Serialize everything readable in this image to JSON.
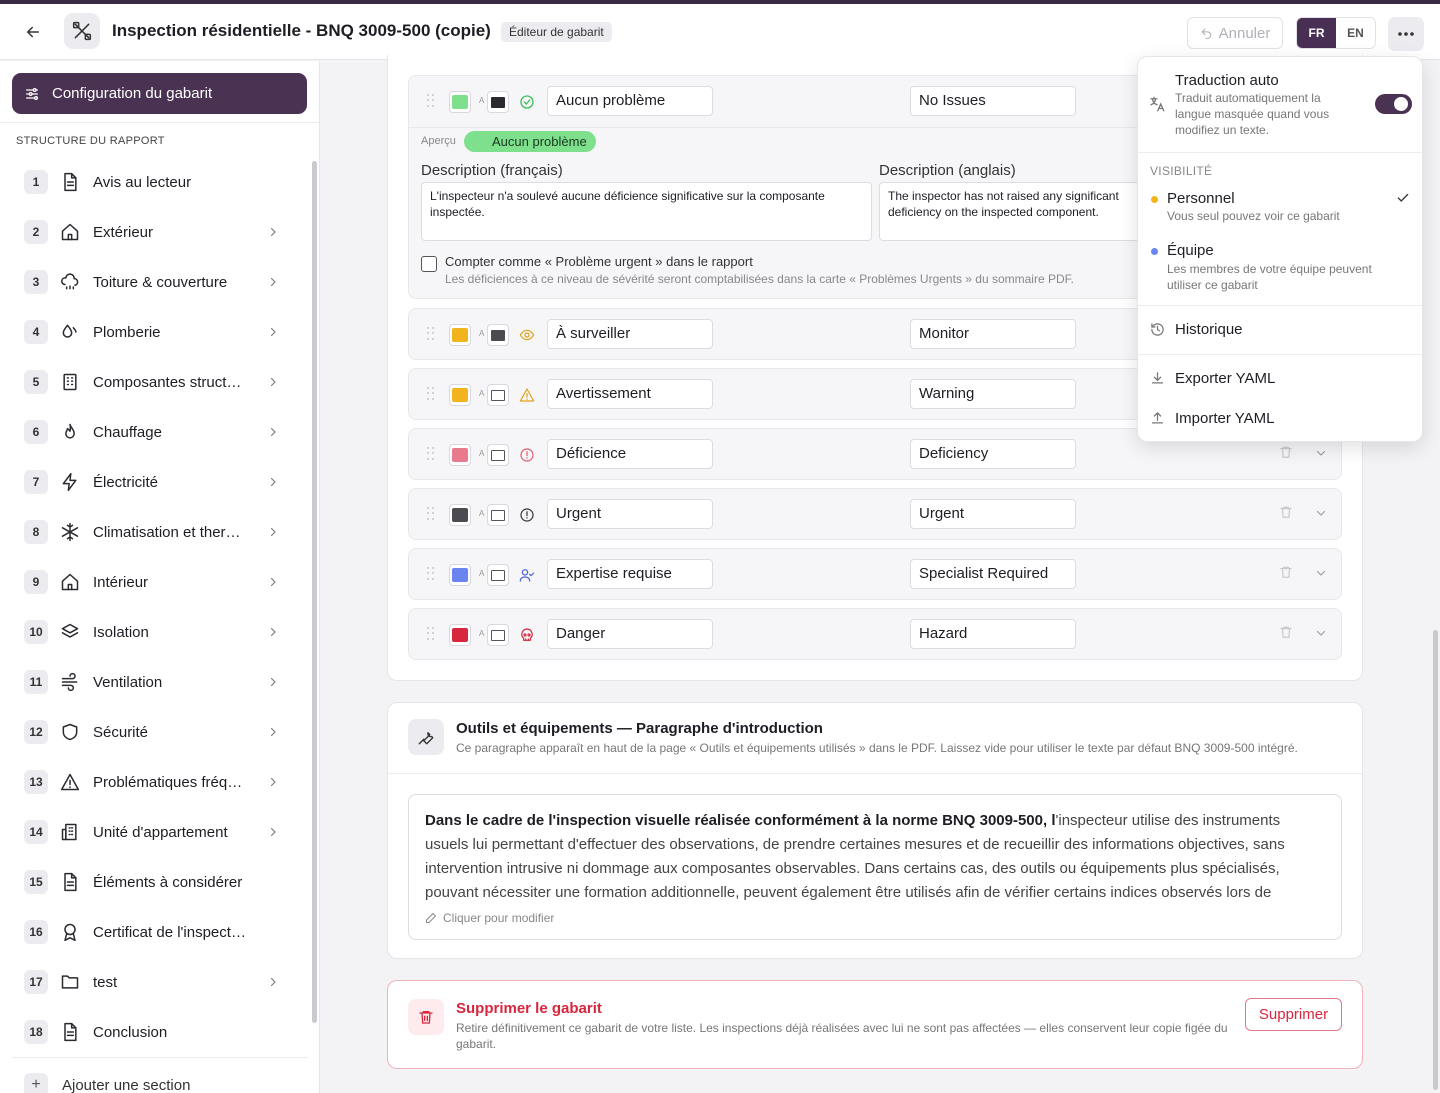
{
  "header": {
    "title": "Inspection résidentielle - BNQ 3009-500 (copie)",
    "badge": "Éditeur de gabarit",
    "undo_label": "Annuler",
    "lang_fr": "FR",
    "lang_en": "EN"
  },
  "sidebar": {
    "config_label": "Configuration du gabarit",
    "structure_title": "STRUCTURE DU RAPPORT",
    "items": [
      {
        "num": "1",
        "label": "Avis au lecteur",
        "icon": "document-icon",
        "chevron": false
      },
      {
        "num": "2",
        "label": "Extérieur",
        "icon": "home-icon",
        "chevron": true
      },
      {
        "num": "3",
        "label": "Toiture & couverture",
        "icon": "cloud-rain-icon",
        "chevron": true
      },
      {
        "num": "4",
        "label": "Plomberie",
        "icon": "droplets-icon",
        "chevron": true
      },
      {
        "num": "5",
        "label": "Composantes struct…",
        "icon": "building-icon",
        "chevron": true
      },
      {
        "num": "6",
        "label": "Chauffage",
        "icon": "flame-icon",
        "chevron": true
      },
      {
        "num": "7",
        "label": "Électricité",
        "icon": "zap-icon",
        "chevron": true
      },
      {
        "num": "8",
        "label": "Climatisation et ther…",
        "icon": "snowflake-icon",
        "chevron": true
      },
      {
        "num": "9",
        "label": "Intérieur",
        "icon": "home-icon",
        "chevron": true
      },
      {
        "num": "10",
        "label": "Isolation",
        "icon": "layers-icon",
        "chevron": true
      },
      {
        "num": "11",
        "label": "Ventilation",
        "icon": "wind-icon",
        "chevron": true
      },
      {
        "num": "12",
        "label": "Sécurité",
        "icon": "shield-icon",
        "chevron": true
      },
      {
        "num": "13",
        "label": "Problématiques fréq…",
        "icon": "warning-icon",
        "chevron": true
      },
      {
        "num": "14",
        "label": "Unité d'appartement",
        "icon": "building-2-icon",
        "chevron": true
      },
      {
        "num": "15",
        "label": "Éléments à considérer",
        "icon": "document-icon",
        "chevron": false
      },
      {
        "num": "16",
        "label": "Certificat de l'inspecteur",
        "icon": "award-icon",
        "chevron": false
      },
      {
        "num": "17",
        "label": "test",
        "icon": "folder-icon",
        "chevron": true
      },
      {
        "num": "18",
        "label": "Conclusion",
        "icon": "document-icon",
        "chevron": false
      }
    ],
    "add_section": "Ajouter une section"
  },
  "severity": {
    "expanded": {
      "fr": "Aucun problème",
      "en": "No Issues",
      "color": "#7ee08d",
      "preview_label": "Aperçu",
      "preview_badge": "Aucun problème",
      "desc_fr_label": "Description (français)",
      "desc_en_label": "Description (anglais)",
      "desc_fr": "L'inspecteur n'a soulevé aucune déficience significative sur la composante inspectée.",
      "desc_en": "The inspector has not raised any significant deficiency on the inspected component.",
      "urgent_label": "Compter comme « Problème urgent » dans le rapport",
      "urgent_hint": "Les déficiences à ce niveau de sévérité seront comptabilisées dans la carte « Problèmes Urgents » du sommaire PDF.",
      "urgent_checked": false
    },
    "rows": [
      {
        "fr": "À surveiller",
        "en": "Monitor",
        "color": "#f2b41d",
        "text_dark": true,
        "icon": "eye-icon",
        "icon_color": "#e0a21a"
      },
      {
        "fr": "Avertissement",
        "en": "Warning",
        "color": "#f2b41d",
        "text_dark": false,
        "icon": "warning-icon",
        "icon_color": "#e0a21a"
      },
      {
        "fr": "Déficience",
        "en": "Deficiency",
        "color": "#e77a8c",
        "text_dark": false,
        "icon": "alert-circle-icon",
        "icon_color": "#e05a6c"
      },
      {
        "fr": "Urgent",
        "en": "Urgent",
        "color": "#4a4a50",
        "text_dark": false,
        "icon": "alert-circle-icon",
        "icon_color": "#333333"
      },
      {
        "fr": "Expertise requise",
        "en": "Specialist Required",
        "color": "#6a84f0",
        "text_dark": false,
        "icon": "user-check-icon",
        "icon_color": "#4a64d8"
      },
      {
        "fr": "Danger",
        "en": "Hazard",
        "color": "#d7263d",
        "text_dark": false,
        "icon": "skull-icon",
        "icon_color": "#d7263d"
      }
    ]
  },
  "tools": {
    "title": "Outils et équipements — Paragraphe d'introduction",
    "subtitle": "Ce paragraphe apparaît en haut de la page « Outils et équipements utilisés » dans le PDF. Laissez vide pour utiliser le texte par défaut BNQ 3009-500 intégré.",
    "text_bold": "Dans le cadre de l'inspection visuelle réalisée conformément à la norme BNQ 3009-500, l",
    "text_rest": "'inspecteur utilise des instruments usuels lui permettant d'effectuer des observations, de prendre certaines mesures et de recueillir des informations objectives, sans intervention intrusive ni dommage aux composantes observables. Dans certains cas, des outils ou équipements plus spécialisés, pouvant nécessiter une formation additionnelle, peuvent également être utilisés afin de vérifier certains indices observés lors de l'inspection; lorsqu'ils sont…",
    "edit_hint": "Cliquer pour modifier"
  },
  "delete": {
    "title": "Supprimer le gabarit",
    "desc": "Retire définitivement ce gabarit de votre liste. Les inspections déjà réalisées avec lui ne sont pas affectées — elles conservent leur copie figée du gabarit.",
    "button": "Supprimer"
  },
  "menu": {
    "auto_title": "Traduction auto",
    "auto_desc": "Traduit automatiquement la langue masquée quand vous modifiez un texte.",
    "auto_on": true,
    "visibility_label": "VISIBILITÉ",
    "personal_title": "Personnel",
    "personal_desc": "Vous seul pouvez voir ce gabarit",
    "personal_dot": "#f2b41d",
    "team_title": "Équipe",
    "team_desc": "Les membres de votre équipe peuvent utiliser ce gabarit",
    "team_dot": "#6a84f0",
    "history": "Historique",
    "export": "Exporter YAML",
    "import": "Importer YAML"
  },
  "colors": {
    "brand": "#4a3352",
    "danger": "#d7263d"
  }
}
